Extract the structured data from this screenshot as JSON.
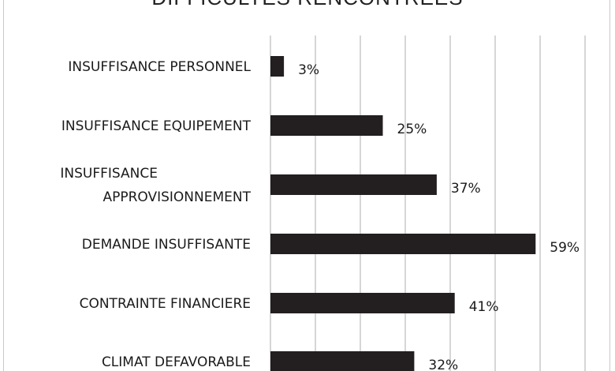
{
  "chart_data": {
    "type": "bar",
    "orientation": "horizontal",
    "title": "DIFFICULTES RENCONTREES",
    "categories": [
      "INSUFFISANCE PERSONNEL",
      "INSUFFISANCE EQUIPEMENT",
      [
        "INSUFFISANCE",
        "APPROVISIONNEMENT"
      ],
      "DEMANDE INSUFFISANTE",
      "CONTRAINTE FINANCIERE",
      "CLIMAT DEFAVORABLE"
    ],
    "values": [
      3,
      25,
      37,
      59,
      41,
      32
    ],
    "data_labels": [
      "3%",
      "25%",
      "37%",
      "59%",
      "41%",
      "32%"
    ],
    "value_unit": "%",
    "xlim": [
      0,
      70
    ],
    "grid": true,
    "bar_color": "#231f20",
    "grid_color": "#c8c8c8"
  }
}
